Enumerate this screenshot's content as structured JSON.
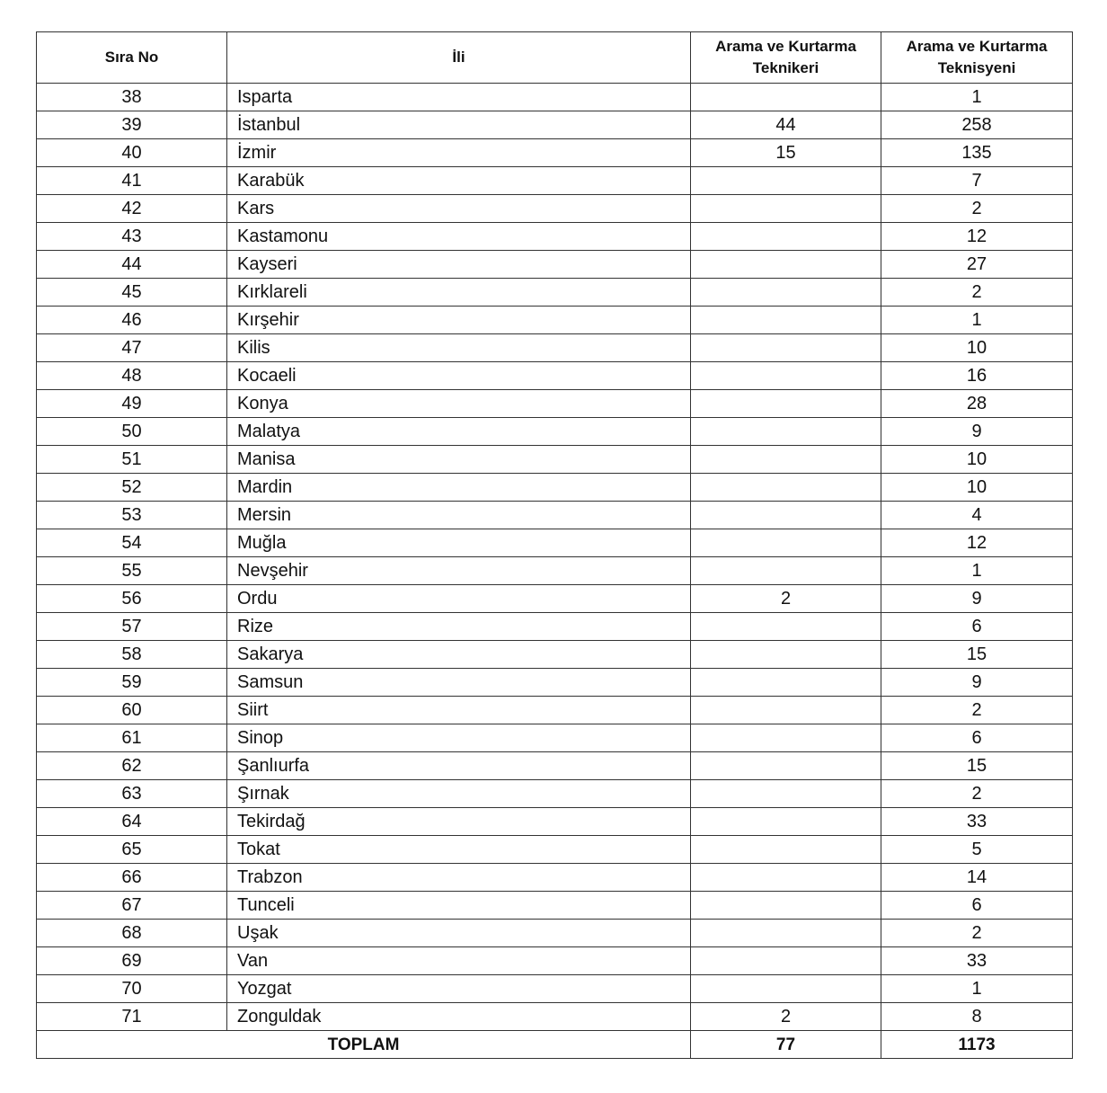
{
  "table": {
    "header": [
      "Sıra No",
      "İli",
      "Arama ve Kurtarma Teknikeri",
      "Arama ve Kurtarma Teknisyeni"
    ],
    "rows": [
      [
        38,
        "Isparta",
        null,
        1
      ],
      [
        39,
        "İstanbul",
        44,
        258
      ],
      [
        40,
        "İzmir",
        15,
        135
      ],
      [
        41,
        "Karabük",
        null,
        7
      ],
      [
        42,
        "Kars",
        null,
        2
      ],
      [
        43,
        "Kastamonu",
        null,
        12
      ],
      [
        44,
        "Kayseri",
        null,
        27
      ],
      [
        45,
        "Kırklareli",
        null,
        2
      ],
      [
        46,
        "Kırşehir",
        null,
        1
      ],
      [
        47,
        "Kilis",
        null,
        10
      ],
      [
        48,
        "Kocaeli",
        null,
        16
      ],
      [
        49,
        "Konya",
        null,
        28
      ],
      [
        50,
        "Malatya",
        null,
        9
      ],
      [
        51,
        "Manisa",
        null,
        10
      ],
      [
        52,
        "Mardin",
        null,
        10
      ],
      [
        53,
        "Mersin",
        null,
        4
      ],
      [
        54,
        "Muğla",
        null,
        12
      ],
      [
        55,
        "Nevşehir",
        null,
        1
      ],
      [
        56,
        "Ordu",
        2,
        9
      ],
      [
        57,
        "Rize",
        null,
        6
      ],
      [
        58,
        "Sakarya",
        null,
        15
      ],
      [
        59,
        "Samsun",
        null,
        9
      ],
      [
        60,
        "Siirt",
        null,
        2
      ],
      [
        61,
        "Sinop",
        null,
        6
      ],
      [
        62,
        "Şanlıurfa",
        null,
        15
      ],
      [
        63,
        "Şırnak",
        null,
        2
      ],
      [
        64,
        "Tekirdağ",
        null,
        33
      ],
      [
        65,
        "Tokat",
        null,
        5
      ],
      [
        66,
        "Trabzon",
        null,
        14
      ],
      [
        67,
        "Tunceli",
        null,
        6
      ],
      [
        68,
        "Uşak",
        null,
        2
      ],
      [
        69,
        "Van",
        null,
        33
      ],
      [
        70,
        "Yozgat",
        null,
        1
      ],
      [
        71,
        "Zonguldak",
        2,
        8
      ]
    ],
    "total": {
      "label": "TOPLAM",
      "values": [
        77,
        1173
      ]
    }
  }
}
